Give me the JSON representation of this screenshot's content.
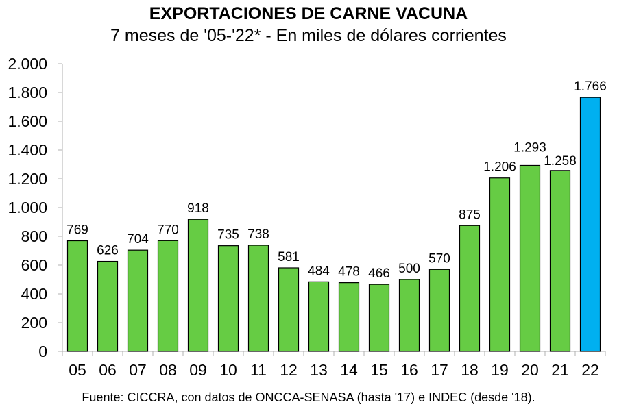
{
  "chart_data": {
    "type": "bar",
    "title": "EXPORTACIONES DE CARNE VACUNA",
    "subtitle": "7 meses de '05-'22* - En miles de dólares corrientes",
    "source": "Fuente: CICCRA, con datos de ONCCA-SENASA (hasta '17) e INDEC (desde '18).",
    "categories": [
      "05",
      "06",
      "07",
      "08",
      "09",
      "10",
      "11",
      "12",
      "13",
      "14",
      "15",
      "16",
      "17",
      "18",
      "19",
      "20",
      "21",
      "22"
    ],
    "values": [
      769,
      626,
      704,
      770,
      918,
      735,
      738,
      581,
      484,
      478,
      466,
      500,
      570,
      875,
      1206,
      1293,
      1258,
      1766
    ],
    "data_labels": [
      "769",
      "626",
      "704",
      "770",
      "918",
      "735",
      "738",
      "581",
      "484",
      "478",
      "466",
      "500",
      "570",
      "875",
      "1.206",
      "1.293",
      "1.258",
      "1.766"
    ],
    "ylim": [
      0,
      2000
    ],
    "yticks": [
      0,
      200,
      400,
      600,
      800,
      1000,
      1200,
      1400,
      1600,
      1800,
      2000
    ],
    "ytick_labels": [
      "0",
      "200",
      "400",
      "600",
      "800",
      "1.000",
      "1.200",
      "1.400",
      "1.600",
      "1.800",
      "2.000"
    ],
    "xlabel": "",
    "ylabel": "",
    "grid": false,
    "colors": {
      "default": "#66cc44",
      "highlight": "#00b0f0",
      "highlight_category": "22"
    }
  }
}
